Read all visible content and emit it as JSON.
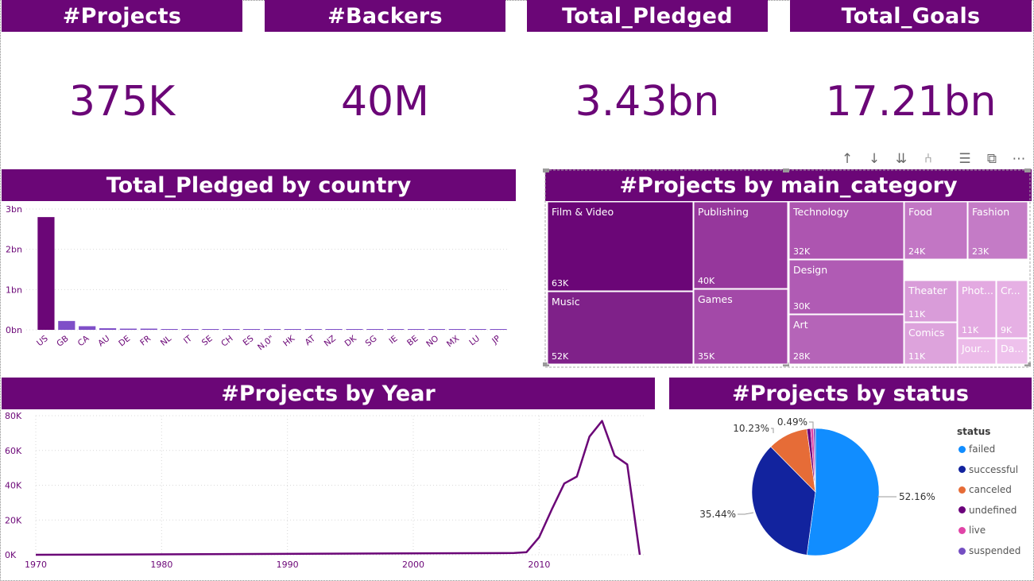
{
  "kpis": [
    {
      "label": "#Projects",
      "value": "375K"
    },
    {
      "label": "#Backers",
      "value": "40M"
    },
    {
      "label": "Total_Pledged",
      "value": "3.43bn"
    },
    {
      "label": "Total_Goals",
      "value": "17.21bn"
    }
  ],
  "toolbar": {
    "icons": [
      "arrow-up-icon",
      "arrow-down-icon",
      "double-arrow-down-icon",
      "expand-hierarchy-icon",
      "filter-icon",
      "focus-mode-icon",
      "more-options-icon"
    ],
    "glyphs": [
      "↑",
      "↓",
      "⇊",
      "⑃",
      "☰",
      "⧉",
      "⋯"
    ]
  },
  "colors": {
    "header": "#6b0677",
    "bar_main": "#6b0677",
    "bar_other": "#7f4fc8",
    "line": "#6b0677",
    "status_failed": "#118dff",
    "status_successful": "#12239e",
    "status_canceled": "#e66c37",
    "status_undefined": "#6b007b",
    "status_live": "#e044a7",
    "status_suspended": "#744ec2"
  },
  "chart_data": [
    {
      "type": "bar",
      "title": "Total_Pledged by country",
      "categories": [
        "US",
        "GB",
        "CA",
        "AU",
        "DE",
        "FR",
        "NL",
        "IT",
        "SE",
        "CH",
        "ES",
        "N,0\"",
        "HK",
        "AT",
        "NZ",
        "DK",
        "SG",
        "IE",
        "BE",
        "NO",
        "MX",
        "LU",
        "JP"
      ],
      "values": [
        2.8,
        0.22,
        0.09,
        0.04,
        0.03,
        0.03,
        0.02,
        0.015,
        0.012,
        0.01,
        0.01,
        0.01,
        0.008,
        0.008,
        0.007,
        0.007,
        0.006,
        0.005,
        0.005,
        0.005,
        0.004,
        0.003,
        0.002
      ],
      "value_unit": "bn",
      "y_ticks": [
        "0bn",
        "1bn",
        "2bn",
        "3bn"
      ],
      "ylim": [
        0,
        3
      ],
      "grid": true
    },
    {
      "type": "treemap",
      "title": "#Projects by main_category",
      "items": [
        {
          "label": "Film & Video",
          "value": "63K",
          "color": "#6b0677"
        },
        {
          "label": "Music",
          "value": "52K",
          "color": "#7f2189"
        },
        {
          "label": "Publishing",
          "value": "40K",
          "color": "#96379c"
        },
        {
          "label": "Games",
          "value": "35K",
          "color": "#a349a8"
        },
        {
          "label": "Technology",
          "value": "32K",
          "color": "#ad55b0"
        },
        {
          "label": "Design",
          "value": "30K",
          "color": "#b05bb4"
        },
        {
          "label": "Art",
          "value": "28K",
          "color": "#b564b8"
        },
        {
          "label": "Food",
          "value": "24K",
          "color": "#c276c4"
        },
        {
          "label": "Fashion",
          "value": "23K",
          "color": "#c47bc6"
        },
        {
          "label": "Theater",
          "value": "11K",
          "color": "#d99cd9"
        },
        {
          "label": "Comics",
          "value": "11K",
          "color": "#dda3dc"
        },
        {
          "label": "Phot...",
          "value": "11K",
          "color": "#e3a9e1"
        },
        {
          "label": "Cr...",
          "value": "9K",
          "color": "#e6b0e4"
        },
        {
          "label": "Jour...",
          "value": "",
          "color": "#ecbbe9"
        },
        {
          "label": "Da...",
          "value": "",
          "color": "#eec1ec"
        }
      ]
    },
    {
      "type": "line",
      "title": "#Projects by Year",
      "x": [
        1970,
        2008,
        2009,
        2010,
        2011,
        2012,
        2013,
        2014,
        2015,
        2016,
        2017,
        2018
      ],
      "y": [
        0,
        1000,
        1500,
        10000,
        26000,
        41000,
        45000,
        68000,
        77000,
        57000,
        52000,
        0
      ],
      "x_ticks": [
        "1970",
        "1980",
        "1990",
        "2000",
        "2010"
      ],
      "y_ticks": [
        "0K",
        "20K",
        "40K",
        "60K",
        "80K"
      ],
      "xlim": [
        1969,
        2019
      ],
      "ylim": [
        0,
        80000
      ],
      "grid": true
    },
    {
      "type": "pie",
      "title": "#Projects by status",
      "legend_title": "status",
      "legend_position": "right",
      "slices": [
        {
          "label": "failed",
          "value": 52.16,
          "display": "52.16%"
        },
        {
          "label": "successful",
          "value": 35.44,
          "display": "35.44%"
        },
        {
          "label": "canceled",
          "value": 10.23,
          "display": "10.23%"
        },
        {
          "label": "undefined",
          "value": 0.95,
          "display": ""
        },
        {
          "label": "live",
          "value": 0.73,
          "display": ""
        },
        {
          "label": "suspended",
          "value": 0.49,
          "display": "0.49%"
        }
      ]
    }
  ]
}
